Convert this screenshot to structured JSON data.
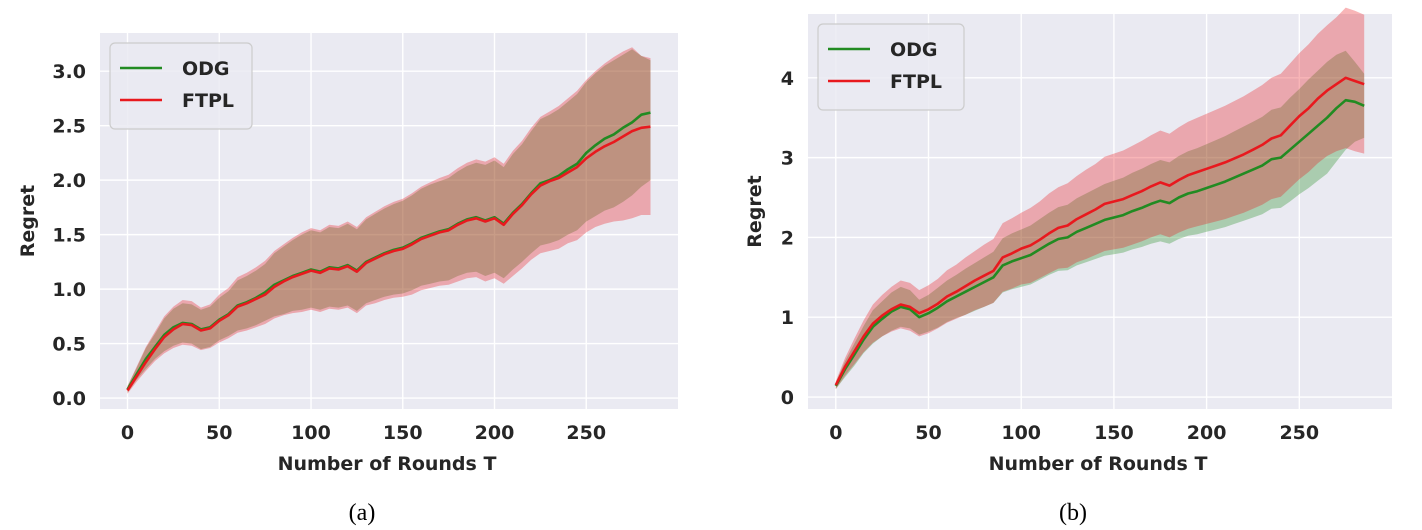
{
  "chart_data": [
    {
      "type": "line",
      "panel_label": "(a)",
      "xlabel": "Number of Rounds T",
      "ylabel": "Regret",
      "xlim": [
        -15,
        300
      ],
      "ylim": [
        -0.1,
        3.35
      ],
      "xticks": [
        0,
        50,
        100,
        150,
        200,
        250
      ],
      "xtick_labels": [
        "0",
        "50",
        "100",
        "150",
        "200",
        "250"
      ],
      "yticks": [
        0.0,
        0.5,
        1.0,
        1.5,
        2.0,
        2.5,
        3.0
      ],
      "ytick_labels": [
        "0.0",
        "0.5",
        "1.0",
        "1.5",
        "2.0",
        "2.5",
        "3.0"
      ],
      "grid": true,
      "legend_position": "top-left",
      "series": [
        {
          "name": "ODG",
          "color": "#228b22",
          "x": [
            0,
            5,
            10,
            15,
            20,
            25,
            30,
            35,
            40,
            45,
            50,
            55,
            60,
            65,
            70,
            75,
            80,
            85,
            90,
            95,
            100,
            105,
            110,
            115,
            120,
            125,
            130,
            135,
            140,
            145,
            150,
            155,
            160,
            165,
            170,
            175,
            180,
            185,
            190,
            195,
            200,
            205,
            210,
            215,
            220,
            225,
            230,
            235,
            240,
            245,
            250,
            255,
            260,
            265,
            270,
            275,
            280,
            285
          ],
          "y": [
            0.08,
            0.22,
            0.36,
            0.47,
            0.58,
            0.65,
            0.69,
            0.68,
            0.63,
            0.65,
            0.72,
            0.77,
            0.85,
            0.88,
            0.92,
            0.97,
            1.04,
            1.08,
            1.12,
            1.15,
            1.18,
            1.16,
            1.2,
            1.19,
            1.22,
            1.17,
            1.25,
            1.29,
            1.33,
            1.36,
            1.38,
            1.42,
            1.47,
            1.5,
            1.53,
            1.55,
            1.6,
            1.64,
            1.66,
            1.63,
            1.66,
            1.6,
            1.7,
            1.78,
            1.88,
            1.97,
            2.0,
            2.04,
            2.1,
            2.15,
            2.25,
            2.32,
            2.38,
            2.42,
            2.48,
            2.53,
            2.6,
            2.62
          ],
          "band": {
            "lower": [
              0.05,
              0.17,
              0.27,
              0.36,
              0.43,
              0.48,
              0.51,
              0.5,
              0.45,
              0.47,
              0.53,
              0.57,
              0.62,
              0.64,
              0.67,
              0.71,
              0.75,
              0.77,
              0.8,
              0.81,
              0.83,
              0.81,
              0.84,
              0.83,
              0.85,
              0.8,
              0.87,
              0.9,
              0.93,
              0.95,
              0.96,
              0.99,
              1.03,
              1.05,
              1.07,
              1.08,
              1.12,
              1.15,
              1.16,
              1.12,
              1.15,
              1.1,
              1.18,
              1.25,
              1.33,
              1.4,
              1.42,
              1.45,
              1.5,
              1.54,
              1.62,
              1.67,
              1.72,
              1.75,
              1.8,
              1.86,
              1.94,
              2.0
            ],
            "upper": [
              0.11,
              0.28,
              0.46,
              0.59,
              0.73,
              0.82,
              0.87,
              0.86,
              0.81,
              0.84,
              0.92,
              0.98,
              1.08,
              1.12,
              1.17,
              1.23,
              1.33,
              1.39,
              1.45,
              1.5,
              1.54,
              1.52,
              1.57,
              1.56,
              1.6,
              1.55,
              1.64,
              1.69,
              1.74,
              1.78,
              1.81,
              1.86,
              1.92,
              1.96,
              1.99,
              2.02,
              2.08,
              2.13,
              2.16,
              2.14,
              2.18,
              2.12,
              2.24,
              2.33,
              2.45,
              2.56,
              2.6,
              2.65,
              2.72,
              2.79,
              2.9,
              2.98,
              3.05,
              3.1,
              3.15,
              3.2,
              3.14,
              3.1
            ]
          }
        },
        {
          "name": "FTPL",
          "color": "#e8191e",
          "x": [
            0,
            5,
            10,
            15,
            20,
            25,
            30,
            35,
            40,
            45,
            50,
            55,
            60,
            65,
            70,
            75,
            80,
            85,
            90,
            95,
            100,
            105,
            110,
            115,
            120,
            125,
            130,
            135,
            140,
            145,
            150,
            155,
            160,
            165,
            170,
            175,
            180,
            185,
            190,
            195,
            200,
            205,
            210,
            215,
            220,
            225,
            230,
            235,
            240,
            245,
            250,
            255,
            260,
            265,
            270,
            275,
            280,
            285
          ],
          "y": [
            0.07,
            0.2,
            0.33,
            0.45,
            0.56,
            0.63,
            0.68,
            0.67,
            0.62,
            0.64,
            0.71,
            0.76,
            0.84,
            0.87,
            0.91,
            0.95,
            1.02,
            1.07,
            1.11,
            1.14,
            1.17,
            1.15,
            1.19,
            1.18,
            1.21,
            1.16,
            1.24,
            1.28,
            1.32,
            1.35,
            1.37,
            1.41,
            1.46,
            1.49,
            1.52,
            1.54,
            1.59,
            1.63,
            1.65,
            1.62,
            1.65,
            1.59,
            1.69,
            1.77,
            1.87,
            1.95,
            1.99,
            2.02,
            2.07,
            2.12,
            2.2,
            2.26,
            2.31,
            2.35,
            2.4,
            2.45,
            2.48,
            2.49
          ],
          "band": {
            "lower": [
              0.04,
              0.15,
              0.25,
              0.34,
              0.41,
              0.46,
              0.49,
              0.48,
              0.44,
              0.46,
              0.51,
              0.55,
              0.6,
              0.62,
              0.65,
              0.68,
              0.73,
              0.76,
              0.78,
              0.79,
              0.81,
              0.79,
              0.82,
              0.81,
              0.83,
              0.78,
              0.85,
              0.87,
              0.9,
              0.92,
              0.93,
              0.95,
              0.99,
              1.01,
              1.03,
              1.04,
              1.07,
              1.1,
              1.11,
              1.07,
              1.1,
              1.05,
              1.12,
              1.19,
              1.27,
              1.33,
              1.35,
              1.37,
              1.42,
              1.45,
              1.52,
              1.57,
              1.6,
              1.62,
              1.63,
              1.65,
              1.68,
              1.68
            ],
            "upper": [
              0.11,
              0.29,
              0.47,
              0.61,
              0.75,
              0.84,
              0.9,
              0.89,
              0.83,
              0.86,
              0.95,
              1.01,
              1.11,
              1.15,
              1.2,
              1.26,
              1.35,
              1.41,
              1.47,
              1.52,
              1.56,
              1.54,
              1.59,
              1.58,
              1.62,
              1.57,
              1.66,
              1.71,
              1.76,
              1.8,
              1.83,
              1.88,
              1.94,
              1.98,
              2.02,
              2.05,
              2.11,
              2.16,
              2.19,
              2.17,
              2.21,
              2.15,
              2.27,
              2.36,
              2.48,
              2.58,
              2.63,
              2.68,
              2.75,
              2.82,
              2.92,
              3.0,
              3.07,
              3.13,
              3.18,
              3.22,
              3.14,
              3.12
            ]
          }
        }
      ]
    },
    {
      "type": "line",
      "panel_label": "(b)",
      "xlabel": "Number of Rounds T",
      "ylabel": "Regret",
      "xlim": [
        -15,
        300
      ],
      "ylim": [
        -0.15,
        4.8
      ],
      "xticks": [
        0,
        50,
        100,
        150,
        200,
        250
      ],
      "xtick_labels": [
        "0",
        "50",
        "100",
        "150",
        "200",
        "250"
      ],
      "yticks": [
        0,
        1,
        2,
        3,
        4
      ],
      "ytick_labels": [
        "0",
        "1",
        "2",
        "3",
        "4"
      ],
      "grid": true,
      "legend_position": "top-left",
      "series": [
        {
          "name": "ODG",
          "color": "#228b22",
          "x": [
            0,
            5,
            10,
            15,
            20,
            25,
            30,
            35,
            40,
            45,
            50,
            55,
            60,
            65,
            70,
            75,
            80,
            85,
            90,
            95,
            100,
            105,
            110,
            115,
            120,
            125,
            130,
            135,
            140,
            145,
            150,
            155,
            160,
            165,
            170,
            175,
            180,
            185,
            190,
            195,
            200,
            205,
            210,
            215,
            220,
            225,
            230,
            235,
            240,
            245,
            250,
            255,
            260,
            265,
            270,
            275,
            280,
            285
          ],
          "y": [
            0.14,
            0.35,
            0.53,
            0.72,
            0.88,
            0.98,
            1.07,
            1.13,
            1.1,
            1.0,
            1.05,
            1.12,
            1.2,
            1.26,
            1.32,
            1.38,
            1.44,
            1.5,
            1.65,
            1.7,
            1.74,
            1.78,
            1.85,
            1.92,
            1.98,
            2.0,
            2.07,
            2.12,
            2.17,
            2.22,
            2.25,
            2.28,
            2.33,
            2.37,
            2.42,
            2.46,
            2.43,
            2.5,
            2.55,
            2.58,
            2.62,
            2.66,
            2.7,
            2.75,
            2.8,
            2.85,
            2.9,
            2.98,
            3.0,
            3.1,
            3.2,
            3.3,
            3.4,
            3.5,
            3.62,
            3.72,
            3.7,
            3.65
          ],
          "band": {
            "lower": [
              0.1,
              0.25,
              0.39,
              0.55,
              0.67,
              0.76,
              0.83,
              0.88,
              0.86,
              0.78,
              0.82,
              0.87,
              0.94,
              0.99,
              1.03,
              1.08,
              1.13,
              1.18,
              1.31,
              1.35,
              1.38,
              1.41,
              1.47,
              1.53,
              1.58,
              1.59,
              1.65,
              1.69,
              1.73,
              1.77,
              1.79,
              1.81,
              1.85,
              1.88,
              1.92,
              1.95,
              1.92,
              1.98,
              2.02,
              2.04,
              2.07,
              2.1,
              2.13,
              2.17,
              2.21,
              2.25,
              2.29,
              2.36,
              2.37,
              2.45,
              2.54,
              2.62,
              2.71,
              2.8,
              2.95,
              3.1,
              3.2,
              3.25
            ],
            "upper": [
              0.18,
              0.45,
              0.67,
              0.89,
              1.09,
              1.2,
              1.31,
              1.38,
              1.34,
              1.22,
              1.28,
              1.37,
              1.46,
              1.53,
              1.61,
              1.68,
              1.75,
              1.82,
              1.99,
              2.05,
              2.1,
              2.15,
              2.23,
              2.31,
              2.38,
              2.41,
              2.49,
              2.55,
              2.61,
              2.67,
              2.71,
              2.75,
              2.81,
              2.86,
              2.92,
              2.97,
              2.94,
              3.02,
              3.08,
              3.12,
              3.17,
              3.22,
              3.27,
              3.33,
              3.39,
              3.45,
              3.51,
              3.6,
              3.63,
              3.75,
              3.86,
              3.98,
              4.09,
              4.2,
              4.29,
              4.34,
              4.2,
              4.05
            ]
          }
        },
        {
          "name": "FTPL",
          "color": "#e8191e",
          "x": [
            0,
            5,
            10,
            15,
            20,
            25,
            30,
            35,
            40,
            45,
            50,
            55,
            60,
            65,
            70,
            75,
            80,
            85,
            90,
            95,
            100,
            105,
            110,
            115,
            120,
            125,
            130,
            135,
            140,
            145,
            150,
            155,
            160,
            165,
            170,
            175,
            180,
            185,
            190,
            195,
            200,
            205,
            210,
            215,
            220,
            225,
            230,
            235,
            240,
            245,
            250,
            255,
            260,
            265,
            270,
            275,
            280,
            285
          ],
          "y": [
            0.15,
            0.38,
            0.57,
            0.76,
            0.92,
            1.02,
            1.1,
            1.16,
            1.13,
            1.05,
            1.1,
            1.17,
            1.26,
            1.32,
            1.39,
            1.46,
            1.52,
            1.58,
            1.75,
            1.8,
            1.86,
            1.9,
            1.97,
            2.05,
            2.12,
            2.15,
            2.23,
            2.29,
            2.35,
            2.42,
            2.45,
            2.48,
            2.53,
            2.58,
            2.64,
            2.69,
            2.65,
            2.72,
            2.78,
            2.82,
            2.86,
            2.9,
            2.94,
            2.99,
            3.04,
            3.1,
            3.16,
            3.24,
            3.28,
            3.4,
            3.52,
            3.62,
            3.74,
            3.84,
            3.92,
            4.0,
            3.96,
            3.92
          ],
          "band": {
            "lower": [
              0.1,
              0.27,
              0.41,
              0.56,
              0.68,
              0.76,
              0.82,
              0.86,
              0.83,
              0.76,
              0.8,
              0.86,
              0.93,
              0.98,
              1.03,
              1.09,
              1.13,
              1.18,
              1.32,
              1.36,
              1.41,
              1.43,
              1.49,
              1.55,
              1.61,
              1.62,
              1.69,
              1.73,
              1.78,
              1.83,
              1.85,
              1.87,
              1.91,
              1.95,
              2.0,
              2.04,
              2.0,
              2.06,
              2.11,
              2.14,
              2.17,
              2.2,
              2.23,
              2.27,
              2.31,
              2.36,
              2.41,
              2.48,
              2.51,
              2.62,
              2.73,
              2.82,
              2.93,
              3.02,
              3.08,
              3.12,
              3.08,
              3.05
            ],
            "upper": [
              0.2,
              0.49,
              0.73,
              0.96,
              1.16,
              1.28,
              1.38,
              1.46,
              1.43,
              1.34,
              1.4,
              1.48,
              1.59,
              1.66,
              1.75,
              1.83,
              1.91,
              1.98,
              2.18,
              2.24,
              2.31,
              2.37,
              2.45,
              2.55,
              2.63,
              2.68,
              2.77,
              2.85,
              2.92,
              3.01,
              3.05,
              3.09,
              3.15,
              3.21,
              3.28,
              3.34,
              3.3,
              3.38,
              3.45,
              3.5,
              3.55,
              3.6,
              3.65,
              3.71,
              3.77,
              3.84,
              3.91,
              4.0,
              4.05,
              4.18,
              4.31,
              4.42,
              4.55,
              4.66,
              4.76,
              4.88,
              4.84,
              4.79
            ]
          }
        }
      ]
    }
  ]
}
